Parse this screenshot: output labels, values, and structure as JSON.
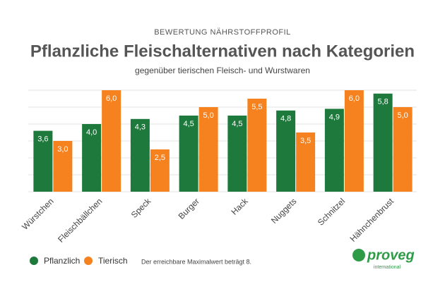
{
  "chart_data": {
    "type": "bar",
    "kicker": "BEWERTUNG NÄHRSTOFFPROFIL",
    "title": "Pflanzliche Fleischalternativen nach Kategorien",
    "subtitle": "gegenüber tierischen Fleisch- und Wurstwaren",
    "categories": [
      "Würstchen",
      "Fleischbällchen",
      "Speck",
      "Burger",
      "Hack",
      "Nuggets",
      "Schnitzel",
      "Hähnchenbrust"
    ],
    "series": [
      {
        "name": "Pflanzlich",
        "color": "#1e7a3c",
        "values": [
          3.6,
          4.0,
          4.3,
          4.5,
          4.5,
          4.8,
          4.9,
          5.8
        ],
        "value_labels": [
          "3,6",
          "4,0",
          "4,3",
          "4,5",
          "4,5",
          "4,8",
          "4,9",
          "5,8"
        ]
      },
      {
        "name": "Tierisch",
        "color": "#f5821f",
        "values": [
          3.0,
          6.0,
          2.5,
          5.0,
          5.5,
          3.5,
          6.0,
          5.0
        ],
        "value_labels": [
          "3,0",
          "6,0",
          "2,5",
          "5,0",
          "5,5",
          "3,5",
          "6,0",
          "5,0"
        ]
      }
    ],
    "ylim": [
      0,
      6
    ],
    "yticks": [
      0,
      1,
      2,
      3,
      4,
      5,
      6
    ],
    "grid": true,
    "note": "Der erreichbare Maximalwert beträgt 8."
  },
  "branding": {
    "name": "proveg",
    "tagline": "international"
  }
}
